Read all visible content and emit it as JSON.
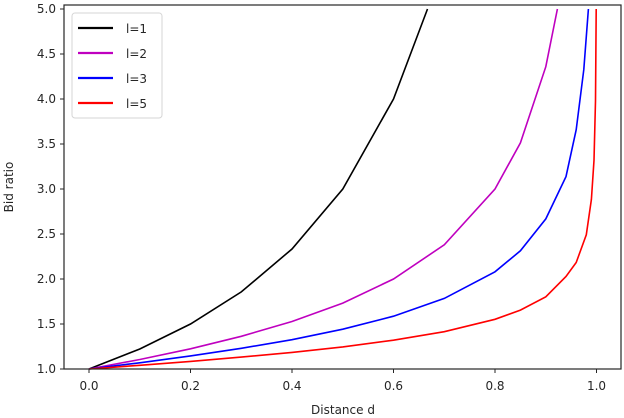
{
  "chart_data": {
    "type": "line",
    "title": "",
    "xlabel": "Distance d",
    "ylabel": "Bid ratio",
    "xlim": [
      -0.05,
      1.05
    ],
    "ylim": [
      1.0,
      5.0
    ],
    "xticks": [
      "0.0",
      "0.2",
      "0.4",
      "0.6",
      "0.8",
      "1.0"
    ],
    "yticks": [
      "1.0",
      "1.5",
      "2.0",
      "2.5",
      "3.0",
      "3.5",
      "4.0",
      "4.5",
      "5.0"
    ],
    "grid": false,
    "legend_position": "upper left",
    "series": [
      {
        "name": "l=1",
        "color": "#000000",
        "x": [
          0,
          0.1,
          0.2,
          0.3,
          0.4,
          0.5,
          0.6,
          0.667
        ],
        "y": [
          1,
          1.222,
          1.5,
          1.857,
          2.333,
          3.0,
          4.0,
          5.0
        ]
      },
      {
        "name": "l=2",
        "color": "#bf00bf",
        "x": [
          0,
          0.1,
          0.2,
          0.3,
          0.4,
          0.5,
          0.6,
          0.7,
          0.8,
          0.85,
          0.9,
          0.923
        ],
        "y": [
          1,
          1.106,
          1.225,
          1.363,
          1.528,
          1.732,
          2.0,
          2.38,
          3.0,
          3.512,
          4.359,
          5.0
        ]
      },
      {
        "name": "l=3",
        "color": "#0000ff",
        "x": [
          0,
          0.1,
          0.2,
          0.3,
          0.4,
          0.5,
          0.6,
          0.7,
          0.8,
          0.85,
          0.9,
          0.94,
          0.96,
          0.975,
          0.984
        ],
        "y": [
          1,
          1.069,
          1.145,
          1.23,
          1.326,
          1.442,
          1.587,
          1.784,
          2.08,
          2.313,
          2.668,
          3.138,
          3.659,
          4.327,
          5.0
        ]
      },
      {
        "name": "l=5",
        "color": "#ff0000",
        "x": [
          0,
          0.1,
          0.2,
          0.3,
          0.4,
          0.5,
          0.6,
          0.7,
          0.8,
          0.85,
          0.9,
          0.94,
          0.96,
          0.98,
          0.99,
          0.995,
          0.998,
          0.9994
        ],
        "y": [
          1,
          1.041,
          1.084,
          1.132,
          1.185,
          1.246,
          1.32,
          1.414,
          1.552,
          1.655,
          1.802,
          2.028,
          2.183,
          2.491,
          2.885,
          3.319,
          3.979,
          5.0
        ]
      }
    ],
    "legend": [
      "l=1",
      "l=2",
      "l=3",
      "l=5"
    ]
  }
}
